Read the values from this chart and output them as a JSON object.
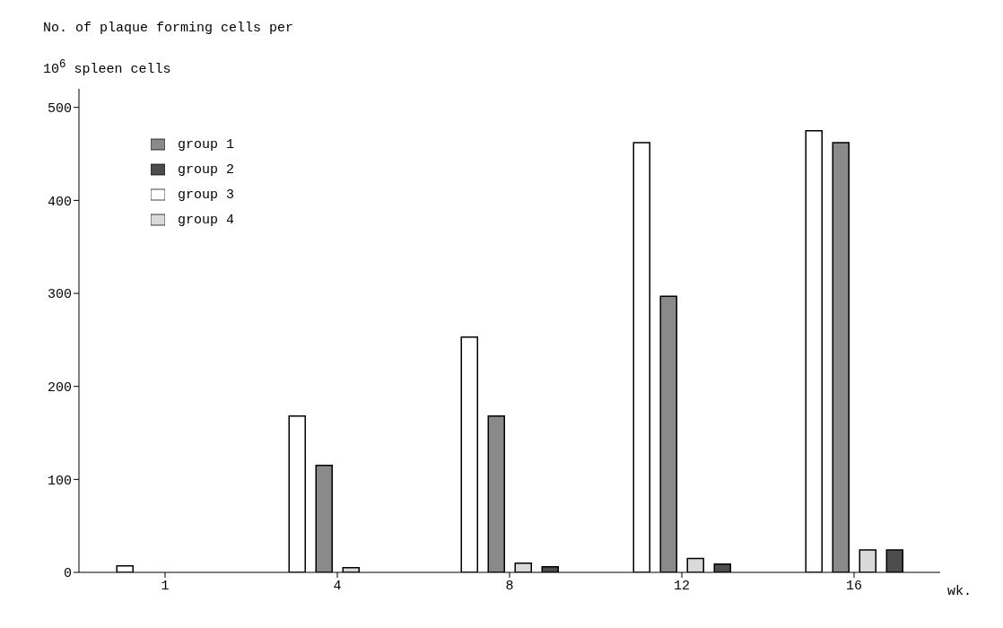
{
  "chart_data": {
    "type": "bar",
    "ylabel": "No. of plaque forming cells per 10$^{6}$ spleen cells",
    "xlabel": "wk.",
    "categories": [
      "1",
      "4",
      "8",
      "12",
      "16"
    ],
    "series": [
      {
        "name": "group 3",
        "color": "#ffffff",
        "values": [
          7,
          168,
          253,
          462,
          475
        ]
      },
      {
        "name": "group 1",
        "color": "#8a8a8a",
        "values": [
          null,
          115,
          168,
          297,
          462
        ]
      },
      {
        "name": "group 4",
        "color": "#d9d9d9",
        "values": [
          null,
          5,
          10,
          15,
          24
        ]
      },
      {
        "name": "group 2",
        "color": "#4d4d4d",
        "values": [
          null,
          null,
          6,
          9,
          24
        ]
      }
    ],
    "ylim": [
      0,
      520
    ],
    "yticks": [
      0,
      100,
      200,
      300,
      400,
      500
    ],
    "grid": false,
    "legend": "top left"
  }
}
